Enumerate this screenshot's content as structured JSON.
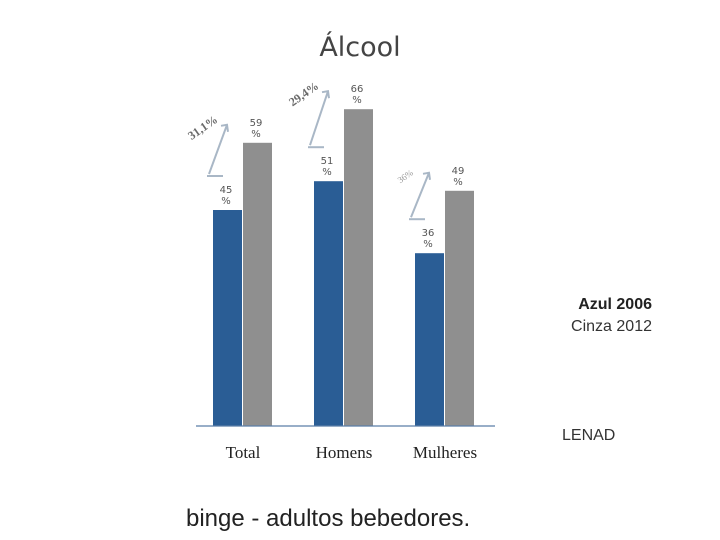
{
  "title": "Álcool",
  "legend": {
    "series1": "Azul 2006",
    "series2": "Cinza 2012"
  },
  "source": "LENAD",
  "caption": "binge -   adultos bebedores.",
  "colors": {
    "series1": "#2a5d95",
    "series2": "#8f8f8f",
    "arrow": "#a9b7c6",
    "annotation": "#6a6a6a"
  },
  "chart_data": {
    "type": "bar",
    "categories": [
      "Total",
      "Homens",
      "Mulheres"
    ],
    "series": [
      {
        "name": "Azul 2006",
        "values": [
          45,
          51,
          36
        ],
        "labels": [
          "45 %",
          "51 %",
          "36 %"
        ]
      },
      {
        "name": "Cinza 2012",
        "values": [
          59,
          66,
          49
        ],
        "labels": [
          "59 %",
          "66 %",
          "49 %"
        ]
      }
    ],
    "ylim": [
      0,
      75
    ],
    "grid": false,
    "annotations": [
      "31,1%",
      "29,4%",
      "36%"
    ]
  }
}
